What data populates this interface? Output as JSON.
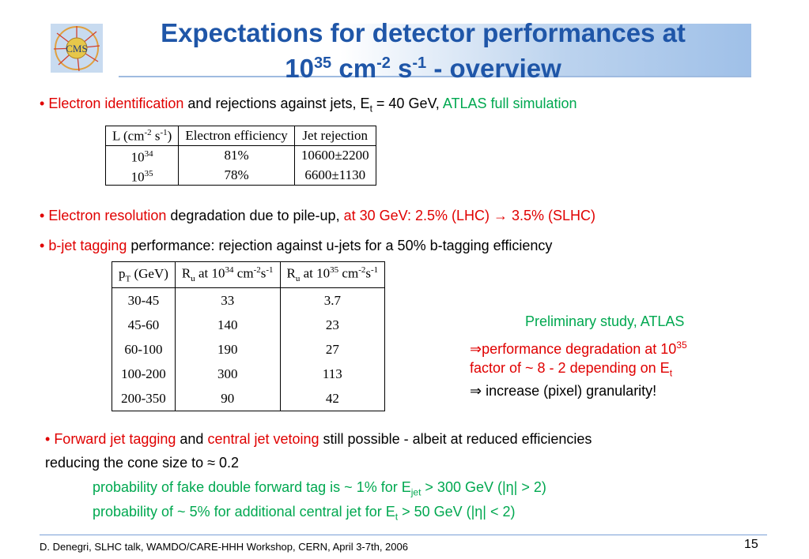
{
  "title": {
    "line1": "Expectations for detector performances at",
    "base": "10",
    "exp1": "35",
    "cm": " cm",
    "exp2": "-2",
    "s": " s",
    "exp3": "-1",
    "rest": " - overview"
  },
  "bullet1": {
    "red": "Electron identification",
    "mid": " and rejections against jets, E",
    "sub": "t",
    "mid2": " = 40 GeV, ",
    "green": "ATLAS full simulation"
  },
  "table1": {
    "h_l": "L (cm",
    "h_l_sup1": "-2",
    "h_l_mid": " s",
    "h_l_sup2": "-1",
    "h_l_end": ")",
    "h_eff": "Electron efficiency",
    "h_rej": "Jet rejection",
    "rows": [
      {
        "base": "10",
        "exp": "34",
        "eff": "81%",
        "rej": "10600±2200"
      },
      {
        "base": "10",
        "exp": "35",
        "eff": "78%",
        "rej": "6600±1130"
      }
    ]
  },
  "bullet2": {
    "red": "Electron resolution",
    "mid": " degradation due to pile-up, ",
    "red2": "at 30 GeV:  2.5% (LHC) ",
    "arrow": "→",
    "red3": " 3.5% (SLHC)"
  },
  "bullet3": {
    "red": "b-jet tagging",
    "mid": " performance: rejection against u-jets for a 50% b-tagging efficiency"
  },
  "table2": {
    "h1": "p",
    "h1_sub": "T",
    "h1_end": " (GeV)",
    "h2": "R",
    "h2_sub": "u",
    "h2_mid": " at 10",
    "h2_sup": "34",
    "h2_cm": " cm",
    "h2_sup2": "-2",
    "h2_s": "s",
    "h2_sup3": "-1",
    "h3": "R",
    "h3_sub": "u",
    "h3_mid": " at 10",
    "h3_sup": "35",
    "h3_cm": " cm",
    "h3_sup2": "-2",
    "h3_s": "s",
    "h3_sup3": "-1",
    "rows": [
      {
        "pt": "30-45",
        "r34": "33",
        "r35": "3.7"
      },
      {
        "pt": "45-60",
        "r34": "140",
        "r35": "23"
      },
      {
        "pt": "60-100",
        "r34": "190",
        "r35": "27"
      },
      {
        "pt": "100-200",
        "r34": "300",
        "r35": "113"
      },
      {
        "pt": "200-350",
        "r34": "90",
        "r35": "42"
      }
    ]
  },
  "right": {
    "green": "Preliminary study, ATLAS",
    "l2_arrow": "⇒",
    "l2": "performance degradation at 10",
    "l2_sup": "35",
    "l3": "factor of ~ 8 - 2 depending on E",
    "l3_sub": "t",
    "l4_arrow": "⇒",
    "l4": " increase (pixel) granularity!"
  },
  "bullet4": {
    "red": "Forward jet tagging",
    "mid": " and ",
    "red2": "central jet vetoing",
    "end": " still possible - albeit at reduced efficiencies"
  },
  "line5": "reducing the cone size to ≈ 0.2",
  "green1": {
    "a": "probability of fake double forward tag is ~ 1% for E",
    "sub": "jet",
    "b": " > 300 GeV (|η| > 2)"
  },
  "green2": {
    "a": "probability of  ~ 5% for additional central jet for E",
    "sub": "t",
    "b": " > 50 GeV (|η| < 2)"
  },
  "footer": "D. Denegri, SLHC talk, WAMDO/CARE-HHH  Workshop, CERN,  April 3-7th, 2006",
  "page_number": "15",
  "logo_text": "CMS"
}
